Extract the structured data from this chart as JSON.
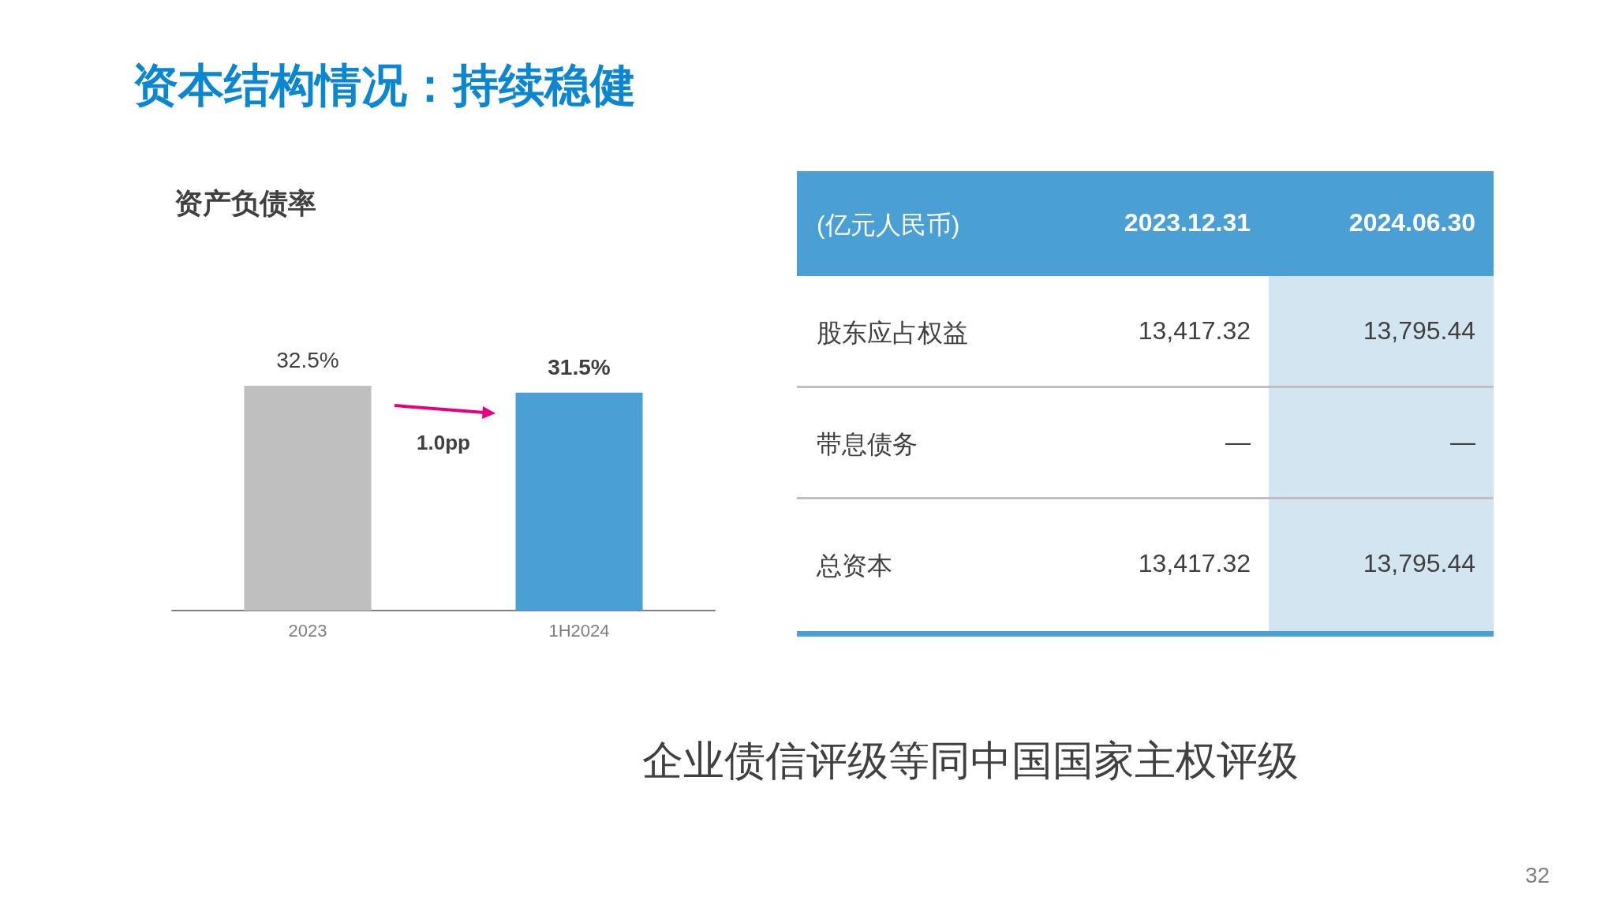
{
  "chart_data": [
    {
      "type": "bar",
      "title": "资本结构情况：持续稳健",
      "subtitle": "资产负债率",
      "categories": [
        "2023",
        "1H2024"
      ],
      "values": [
        32.5,
        31.5
      ],
      "colors": [
        "#bfbfbf",
        "#4a9fd5"
      ],
      "value_labels": [
        "32.5%",
        "31.5%"
      ],
      "tick_labels": "x",
      "annotations": [
        "1.0pp"
      ]
    },
    {
      "type": "other",
      "annotations": [
        "(亿元人民币)",
        "2023.12.31",
        "2024.06.30",
        "股东应占权益",
        "13,417.32",
        "13,795.44",
        "带息债务",
        "—",
        "—",
        "总资本",
        "13,417.32",
        "13,795.44",
        "企业债信评级等同中国国家主权评级",
        "32"
      ]
    }
  ]
}
